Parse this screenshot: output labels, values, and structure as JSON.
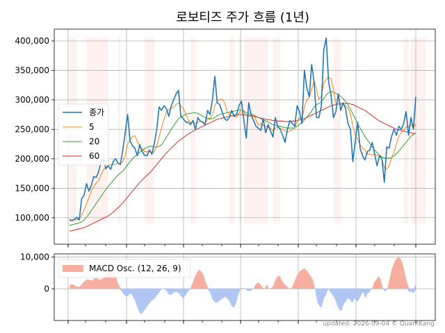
{
  "chart_data": [
    {
      "type": "line",
      "title": "로보티즈 주가 흐름 (1년)",
      "xlabel": "",
      "ylabel": "",
      "ylim": [
        55000,
        420000
      ],
      "yticks": [
        100000,
        150000,
        200000,
        250000,
        300000,
        350000,
        400000
      ],
      "ytick_labels": [
        "100,000",
        "150,000",
        "200,000",
        "250,000",
        "300,000",
        "350,000",
        "400,000"
      ],
      "grid": true,
      "legend_position": "center-left",
      "colors": {
        "close": "#1f77b4",
        "ma5": "#ff7f0e",
        "ma20": "#2ca02c",
        "ma60": "#d62728",
        "band": "#fdecea"
      },
      "series": [
        {
          "name": "종가",
          "key": "close",
          "values": [
            97000,
            95000,
            97000,
            101000,
            96000,
            132000,
            138000,
            158000,
            145000,
            155000,
            170000,
            168000,
            178000,
            195000,
            200000,
            183000,
            188000,
            182000,
            195000,
            200000,
            193000,
            190000,
            215000,
            244000,
            275000,
            230000,
            222000,
            218000,
            205000,
            224000,
            212000,
            206000,
            205000,
            215000,
            208000,
            225000,
            250000,
            288000,
            282000,
            290000,
            285000,
            272000,
            290000,
            300000,
            310000,
            316000,
            272000,
            268000,
            262000,
            262000,
            258000,
            265000,
            250000,
            270000,
            264000,
            262000,
            258000,
            282000,
            275000,
            300000,
            340000,
            295000,
            292000,
            280000,
            268000,
            265000,
            270000,
            282000,
            272000,
            275000,
            290000,
            298000,
            265000,
            235000,
            295000,
            274000,
            265000,
            255000,
            252000,
            248000,
            268000,
            244000,
            258000,
            247000,
            237000,
            270000,
            255000,
            250000,
            240000,
            228000,
            250000,
            265000,
            260000,
            255000,
            290000,
            280000,
            260000,
            350000,
            320000,
            305000,
            360000,
            330000,
            270000,
            270000,
            290000,
            385000,
            405000,
            330000,
            308000,
            270000,
            280000,
            310000,
            282000,
            295000,
            285000,
            260000,
            250000,
            195000,
            230000,
            262000,
            218000,
            205000,
            198000,
            212000,
            215000,
            228000,
            208000,
            188000,
            205000,
            200000,
            160000,
            220000,
            218000,
            238000,
            250000,
            240000,
            255000,
            250000,
            260000,
            280000,
            240000,
            270000,
            250000,
            305000
          ]
        },
        {
          "name": "5",
          "key": "ma5",
          "values": [
            95000,
            95000,
            96000,
            97000,
            97000,
            104000,
            113000,
            124000,
            134000,
            146000,
            153000,
            159000,
            163000,
            173000,
            182000,
            185000,
            189000,
            190000,
            190000,
            190000,
            192000,
            192000,
            195000,
            206000,
            225000,
            232000,
            238000,
            239000,
            230000,
            220000,
            217000,
            212000,
            212000,
            212000,
            209000,
            212000,
            221000,
            237000,
            252000,
            267000,
            279000,
            284000,
            286000,
            287000,
            292000,
            295000,
            290000,
            285000,
            276000,
            267000,
            261000,
            263000,
            260000,
            262000,
            264000,
            263000,
            261000,
            267000,
            267000,
            275000,
            290000,
            298000,
            301000,
            301000,
            296000,
            281000,
            275000,
            273000,
            272000,
            271000,
            278000,
            283000,
            280000,
            273000,
            272000,
            273000,
            274000,
            266000,
            257000,
            259000,
            257000,
            255000,
            254000,
            252000,
            247000,
            252000,
            254000,
            252000,
            250000,
            247000,
            245000,
            247000,
            249000,
            252000,
            263000,
            270000,
            268000,
            287000,
            300000,
            304000,
            318000,
            333000,
            318000,
            300000,
            307000,
            328000,
            335000,
            338000,
            336000,
            317000,
            294000,
            293000,
            292000,
            292000,
            290000,
            286000,
            276000,
            256000,
            240000,
            233000,
            224000,
            218000,
            215000,
            208000,
            208000,
            206000,
            208000,
            205000,
            205000,
            200000,
            185000,
            183000,
            188000,
            202000,
            212000,
            225000,
            238000,
            245000,
            249000,
            254000,
            254000,
            258000,
            252000,
            260000
          ]
        },
        {
          "name": "20",
          "key": "ma20",
          "values": [
            87000,
            88000,
            89000,
            90000,
            91000,
            93000,
            96000,
            101000,
            106000,
            112000,
            118000,
            124000,
            130000,
            136000,
            142000,
            148000,
            153000,
            158000,
            163000,
            168000,
            172000,
            176000,
            179000,
            184000,
            190000,
            195000,
            200000,
            204000,
            208000,
            211000,
            214000,
            217000,
            219000,
            221000,
            221000,
            220000,
            220000,
            221000,
            224000,
            230000,
            237000,
            243000,
            250000,
            256000,
            262000,
            268000,
            271000,
            273000,
            275000,
            277000,
            277000,
            278000,
            278000,
            277000,
            275000,
            272000,
            270000,
            269000,
            268000,
            268000,
            270000,
            273000,
            275000,
            276000,
            277000,
            278000,
            279000,
            280000,
            281000,
            282000,
            283000,
            283000,
            281000,
            278000,
            277000,
            276000,
            274000,
            272000,
            270000,
            268000,
            266000,
            264000,
            262000,
            260000,
            258000,
            257000,
            256000,
            255000,
            254000,
            253000,
            252000,
            252000,
            252000,
            253000,
            255000,
            258000,
            261000,
            266000,
            271000,
            275000,
            281000,
            288000,
            292000,
            294000,
            297000,
            302000,
            308000,
            312000,
            314000,
            313000,
            311000,
            309000,
            306000,
            302000,
            297000,
            291000,
            284000,
            276000,
            268000,
            260000,
            252000,
            245000,
            238000,
            232000,
            226000,
            220000,
            215000,
            210000,
            206000,
            203000,
            201000,
            201000,
            201000,
            202000,
            205000,
            209000,
            213000,
            218000,
            223000,
            228000,
            233000,
            238000,
            241000,
            244000
          ]
        },
        {
          "name": "60",
          "key": "ma60",
          "values": [
            77000,
            78000,
            79000,
            80000,
            81000,
            82000,
            83000,
            85000,
            87000,
            89000,
            91000,
            93000,
            95000,
            97000,
            99000,
            101000,
            103000,
            106000,
            109000,
            113000,
            117000,
            121000,
            125000,
            130000,
            135000,
            140000,
            145000,
            150000,
            155000,
            160000,
            164000,
            168000,
            172000,
            176000,
            180000,
            185000,
            190000,
            195000,
            200000,
            205000,
            210000,
            214000,
            218000,
            222000,
            226000,
            230000,
            233000,
            236000,
            239000,
            242000,
            244000,
            247000,
            249000,
            251000,
            253000,
            255000,
            257000,
            259000,
            261000,
            263000,
            265000,
            267000,
            268000,
            269000,
            270000,
            271000,
            272000,
            273000,
            274000,
            275000,
            275000,
            275000,
            275000,
            274000,
            274000,
            273000,
            272000,
            271000,
            270000,
            269000,
            268000,
            267000,
            266000,
            266000,
            265000,
            265000,
            264000,
            264000,
            264000,
            263000,
            263000,
            263000,
            264000,
            264000,
            265000,
            266000,
            267000,
            268000,
            270000,
            272000,
            274000,
            276000,
            278000,
            280000,
            282000,
            284000,
            286000,
            288000,
            290000,
            291000,
            292000,
            293000,
            294000,
            294000,
            294000,
            294000,
            293000,
            292000,
            290000,
            288000,
            286000,
            284000,
            282000,
            279000,
            276000,
            273000,
            270000,
            267000,
            264000,
            262000,
            260000,
            258000,
            256000,
            254000,
            252000,
            250000,
            249000,
            248000,
            247000,
            246000,
            245000,
            244000,
            243000,
            243000
          ]
        }
      ],
      "shaded_ranges": [
        [
          0,
          3
        ],
        [
          7,
          16
        ],
        [
          20,
          21
        ],
        [
          31,
          35
        ],
        [
          50,
          52
        ],
        [
          66,
          68
        ],
        [
          70,
          71
        ],
        [
          72,
          82
        ],
        [
          84,
          87
        ],
        [
          109,
          112
        ],
        [
          138,
          140
        ],
        [
          141,
          147
        ]
      ],
      "legend": [
        {
          "label": "종가",
          "key": "close"
        },
        {
          "label": "5",
          "key": "ma5"
        },
        {
          "label": "20",
          "key": "ma20"
        },
        {
          "label": "60",
          "key": "ma60"
        }
      ]
    },
    {
      "type": "area",
      "title": "",
      "ylim": [
        -10000,
        11000
      ],
      "yticks": [
        0,
        10000
      ],
      "ytick_labels": [
        "0",
        "10,000"
      ],
      "grid": true,
      "colors": {
        "positive": "#f4a090",
        "negative": "#a7c1f2"
      },
      "legend": [
        {
          "label": "MACD Osc. (12, 26, 9)",
          "key": "positive"
        }
      ],
      "series": [
        {
          "name": "MACD Osc. (12, 26, 9)",
          "values": [
            1000,
            1500,
            1200,
            800,
            600,
            900,
            1800,
            2500,
            3000,
            2800,
            2600,
            3000,
            3500,
            3200,
            2800,
            3200,
            4000,
            4800,
            5500,
            6000,
            5200,
            4300,
            2000,
            500,
            -1000,
            -2000,
            -2500,
            -2000,
            -1500,
            -2500,
            -4000,
            -6000,
            -7500,
            -8000,
            -7000,
            -6000,
            -5000,
            -4000,
            -3500,
            -3000,
            -2000,
            -1000,
            -200,
            0,
            -500,
            -1500,
            -2000,
            -1500,
            -1000,
            -1000,
            -1500,
            -2500,
            -3000,
            -2000,
            -1000,
            0,
            1500,
            3500,
            5000,
            6000,
            5500,
            4500,
            2500,
            500,
            -1000,
            -3000,
            -4000,
            -4500,
            -4000,
            -3500,
            -3000,
            -2500,
            -3000,
            -4000,
            -5500,
            -6000,
            -4500,
            -2000,
            0,
            300,
            0,
            -500,
            -800,
            -500,
            0,
            1500,
            2000,
            1500,
            500,
            0,
            1500,
            0,
            -200,
            1000,
            3000,
            4000,
            4000,
            2500,
            1500,
            800,
            300,
            0,
            1000,
            3000,
            4500,
            5500,
            6000,
            6500,
            6000,
            5000,
            4000,
            3000,
            0,
            -4000,
            -5500,
            -6000,
            -3000,
            -2000,
            0,
            -1000,
            -2000,
            -3000,
            -5000,
            -6500,
            -7000,
            -5000,
            -4000,
            -3000,
            -3500,
            -4500,
            -3000,
            -4000,
            -3500,
            -2000,
            -1000,
            -3000,
            -1500,
            -1000,
            0,
            2000,
            3000,
            4000,
            3000,
            0,
            -1000,
            0,
            3000,
            6000,
            8000,
            9500,
            10000,
            9500,
            8000,
            5000,
            2000,
            -1000,
            -800,
            -1500,
            1500
          ]
        }
      ]
    }
  ],
  "credit": "updated: 2026-09-04 © QuantKang"
}
